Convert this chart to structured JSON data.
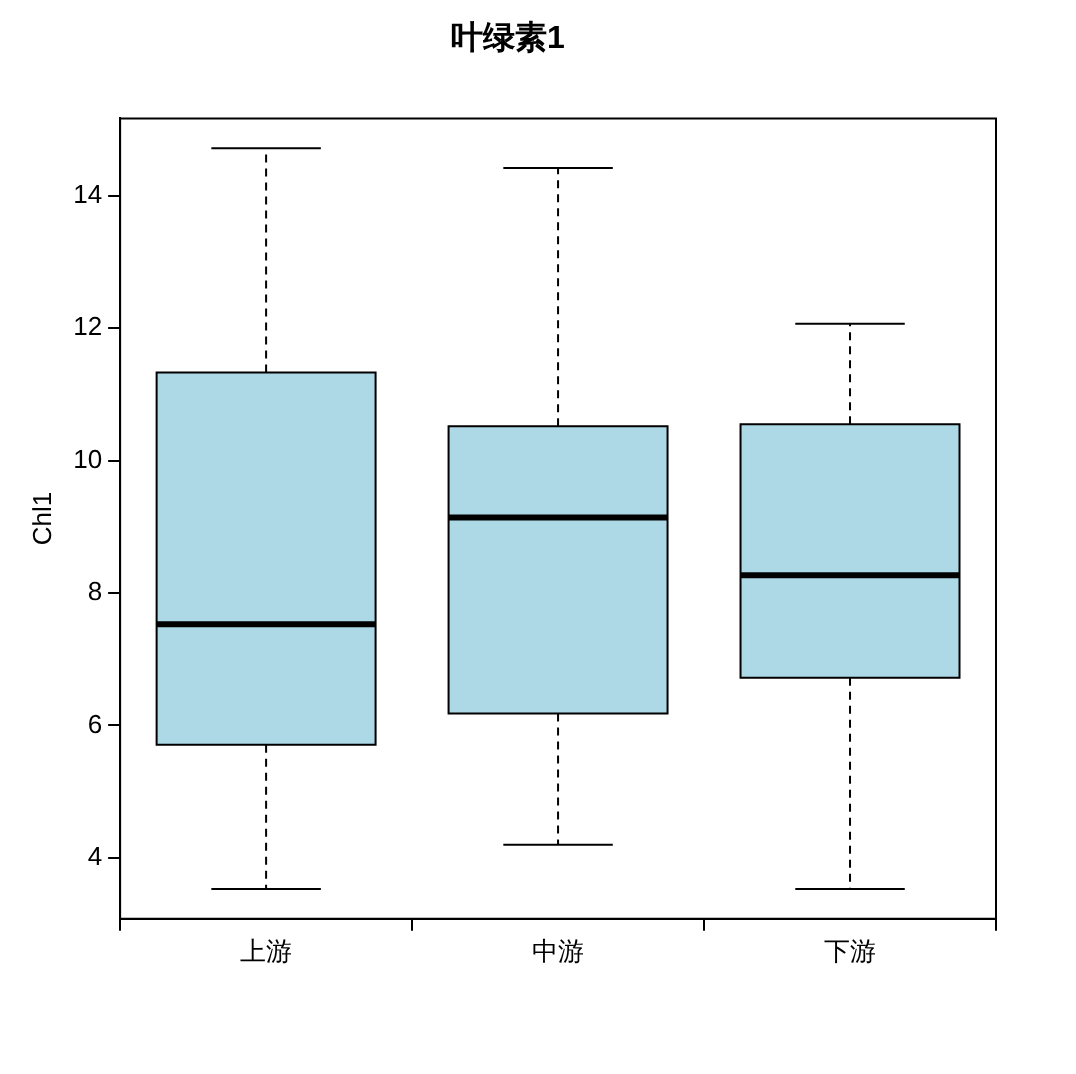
{
  "chart_data": {
    "type": "box",
    "title": "叶绿素1",
    "ylabel": "Chl1",
    "categories": [
      "上游",
      "中游",
      "下游"
    ],
    "color": "#add8e6",
    "boxes": [
      {
        "low": 3.53,
        "q1": 5.71,
        "median": 7.53,
        "q3": 11.33,
        "high": 14.72
      },
      {
        "low": 4.2,
        "q1": 6.18,
        "median": 9.14,
        "q3": 10.52,
        "high": 14.42
      },
      {
        "low": 3.53,
        "q1": 6.72,
        "median": 8.27,
        "q3": 10.55,
        "high": 12.07
      }
    ],
    "ylim": [
      3.08,
      15.17
    ],
    "yticks": [
      4,
      6,
      8,
      10,
      12,
      14
    ],
    "grid": false,
    "legend": false
  }
}
